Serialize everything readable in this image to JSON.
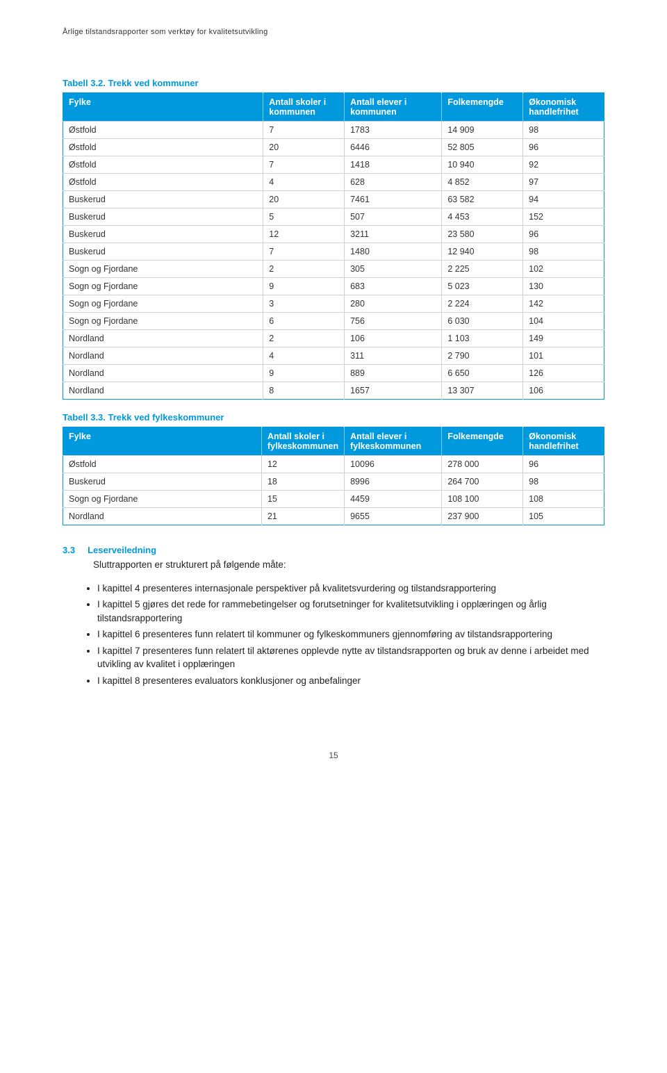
{
  "doc_header": "Årlige tilstandsrapporter som verktøy for kvalitetsutvikling",
  "table1": {
    "caption": "Tabell 3.2. Trekk ved kommuner",
    "headers": [
      "Fylke",
      "Antall skoler i kommunen",
      "Antall elever i kommunen",
      "Folkemengde",
      "Økonomisk handlefrihet"
    ],
    "rows": [
      [
        "Østfold",
        "7",
        "1783",
        "14 909",
        "98"
      ],
      [
        "Østfold",
        "20",
        "6446",
        "52 805",
        "96"
      ],
      [
        "Østfold",
        "7",
        "1418",
        "10 940",
        "92"
      ],
      [
        "Østfold",
        "4",
        "628",
        "4 852",
        "97"
      ],
      [
        "Buskerud",
        "20",
        "7461",
        "63 582",
        "94"
      ],
      [
        "Buskerud",
        "5",
        "507",
        "4 453",
        "152"
      ],
      [
        "Buskerud",
        "12",
        "3211",
        "23 580",
        "96"
      ],
      [
        "Buskerud",
        "7",
        "1480",
        "12 940",
        "98"
      ],
      [
        "Sogn og Fjordane",
        "2",
        "305",
        "2 225",
        "102"
      ],
      [
        "Sogn og Fjordane",
        "9",
        "683",
        "5 023",
        "130"
      ],
      [
        "Sogn og Fjordane",
        "3",
        "280",
        "2 224",
        "142"
      ],
      [
        "Sogn og Fjordane",
        "6",
        "756",
        "6 030",
        "104"
      ],
      [
        "Nordland",
        "2",
        "106",
        "1 103",
        "149"
      ],
      [
        "Nordland",
        "4",
        "311",
        "2 790",
        "101"
      ],
      [
        "Nordland",
        "9",
        "889",
        "6 650",
        "126"
      ],
      [
        "Nordland",
        "8",
        "1657",
        "13 307",
        "106"
      ]
    ]
  },
  "table2": {
    "caption": "Tabell 3.3. Trekk ved fylkeskommuner",
    "headers": [
      "Fylke",
      "Antall skoler i fylkeskommunen",
      "Antall elever i fylkeskommunen",
      "Folkemengde",
      "Økonomisk handlefrihet"
    ],
    "rows": [
      [
        "Østfold",
        "12",
        "10096",
        "278 000",
        "96"
      ],
      [
        "Buskerud",
        "18",
        "8996",
        "264 700",
        "98"
      ],
      [
        "Sogn og Fjordane",
        "15",
        "4459",
        "108 100",
        "108"
      ],
      [
        "Nordland",
        "21",
        "9655",
        "237 900",
        "105"
      ]
    ]
  },
  "section": {
    "num": "3.3",
    "title": "Leserveiledning",
    "intro": "Sluttrapporten er strukturert på følgende måte:",
    "bullets": [
      "I kapittel 4 presenteres internasjonale perspektiver på kvalitetsvurdering og tilstandsrapportering",
      "I kapittel 5 gjøres det rede for rammebetingelser og forutsetninger for kvalitetsutvikling i opplæringen og årlig tilstandsrapportering",
      "I kapittel 6 presenteres funn relatert til kommuner og fylkeskommuners gjennomføring av tilstandsrapportering",
      "I kapittel 7 presenteres funn relatert til aktørenes opplevde nytte av tilstandsrapporten og bruk av denne i arbeidet med utvikling av kvalitet i opplæringen",
      "I kapittel 8 presenteres evaluators konklusjoner og anbefalinger"
    ]
  },
  "page_number": "15",
  "colors": {
    "accent": "#0099dd",
    "header_text": "#ffffff",
    "body_text": "#222222",
    "border": "#d0d0d0"
  }
}
